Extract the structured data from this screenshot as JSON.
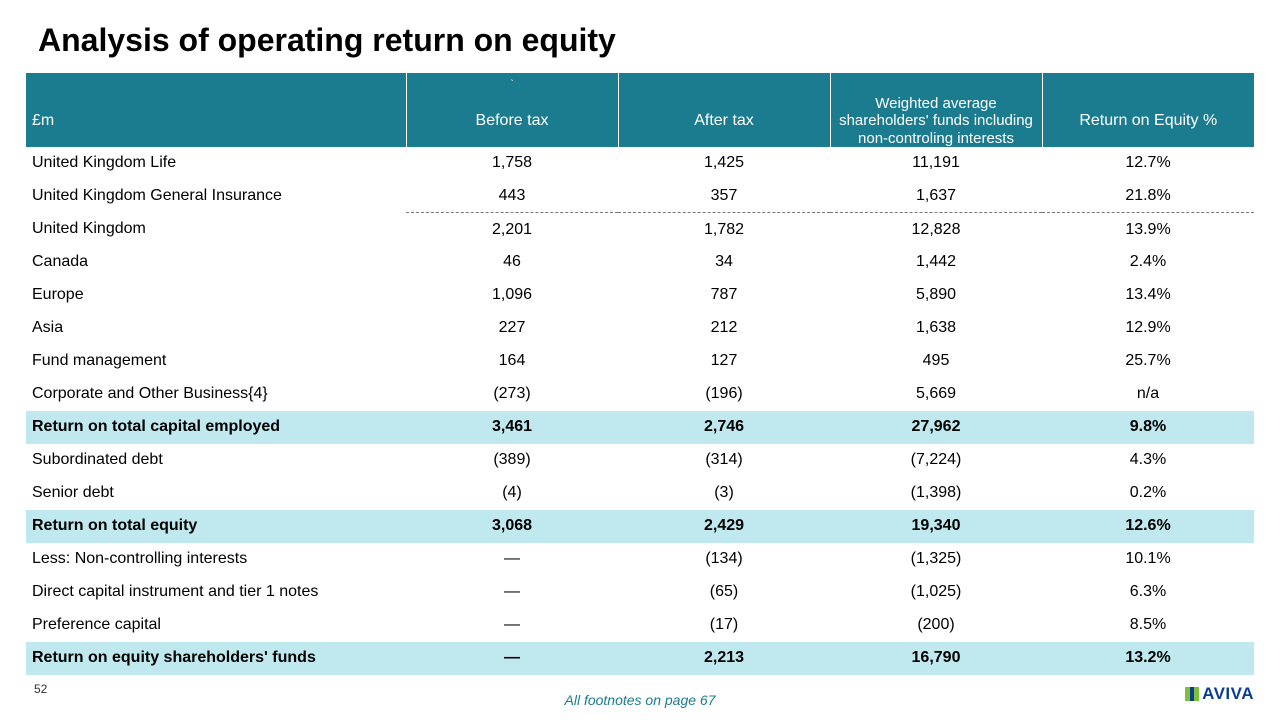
{
  "title": "Analysis of operating return on equity",
  "header": {
    "unit": "£m",
    "tick": "`",
    "col1": "Before tax",
    "col2": "After tax",
    "col3": "Weighted average shareholders' funds including non-controling interests",
    "col4": "Return on Equity %"
  },
  "rows": [
    {
      "label": "United Kingdom Life",
      "c1": "1,758",
      "c2": "1,425",
      "c3": "11,191",
      "c4": "12.7%",
      "hl": false,
      "dashed": false
    },
    {
      "label": "United Kingdom General Insurance",
      "c1": "443",
      "c2": "357",
      "c3": "1,637",
      "c4": "21.8%",
      "hl": false,
      "dashed": true
    },
    {
      "label": "United Kingdom",
      "c1": "2,201",
      "c2": "1,782",
      "c3": "12,828",
      "c4": "13.9%",
      "hl": false,
      "dashed": false
    },
    {
      "label": "Canada",
      "c1": "46",
      "c2": "34",
      "c3": "1,442",
      "c4": "2.4%",
      "hl": false,
      "dashed": false
    },
    {
      "label": "Europe",
      "c1": "1,096",
      "c2": "787",
      "c3": "5,890",
      "c4": "13.4%",
      "hl": false,
      "dashed": false
    },
    {
      "label": "Asia",
      "c1": "227",
      "c2": "212",
      "c3": "1,638",
      "c4": "12.9%",
      "hl": false,
      "dashed": false
    },
    {
      "label": "Fund management",
      "c1": "164",
      "c2": "127",
      "c3": "495",
      "c4": "25.7%",
      "hl": false,
      "dashed": false
    },
    {
      "label": "Corporate and Other Business{4}",
      "c1": "(273)",
      "c2": "(196)",
      "c3": "5,669",
      "c4": "n/a",
      "hl": false,
      "dashed": false
    },
    {
      "label": "Return on total capital employed",
      "c1": "3,461",
      "c2": "2,746",
      "c3": "27,962",
      "c4": "9.8%",
      "hl": true,
      "dashed": false
    },
    {
      "label": "Subordinated debt",
      "c1": "(389)",
      "c2": "(314)",
      "c3": "(7,224)",
      "c4": "4.3%",
      "hl": false,
      "dashed": false
    },
    {
      "label": "Senior debt",
      "c1": "(4)",
      "c2": "(3)",
      "c3": "(1,398)",
      "c4": "0.2%",
      "hl": false,
      "dashed": false
    },
    {
      "label": "Return on total equity",
      "c1": "3,068",
      "c2": "2,429",
      "c3": "19,340",
      "c4": "12.6%",
      "hl": true,
      "dashed": false
    },
    {
      "label": "Less: Non-controlling interests",
      "c1": "—",
      "c2": "(134)",
      "c3": "(1,325)",
      "c4": "10.1%",
      "hl": false,
      "dashed": false
    },
    {
      "label": "Direct capital instrument and tier 1 notes",
      "c1": "—",
      "c2": "(65)",
      "c3": "(1,025)",
      "c4": "6.3%",
      "hl": false,
      "dashed": false
    },
    {
      "label": "Preference capital",
      "c1": "—",
      "c2": "(17)",
      "c3": "(200)",
      "c4": "8.5%",
      "hl": false,
      "dashed": false
    },
    {
      "label": "Return on equity shareholders' funds",
      "c1": "—",
      "c2": "2,213",
      "c3": "16,790",
      "c4": "13.2%",
      "hl": true,
      "dashed": false
    }
  ],
  "footer": {
    "page": "52",
    "note": "All footnotes on page 67",
    "logo_text": "AVIVA"
  },
  "colors": {
    "header_bg": "#1b7c8f",
    "highlight_bg": "#bfe9ee",
    "logo_green": "#7bbf3a",
    "logo_blue": "#0b3d91",
    "footnote": "#1b7c8f"
  }
}
